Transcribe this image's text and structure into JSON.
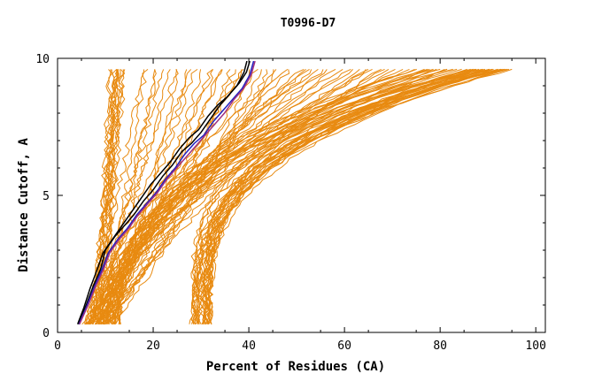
{
  "chart_data": {
    "type": "line",
    "title": "T0996-D7",
    "xlabel": "Percent of Residues (CA)",
    "ylabel": "Distance Cutoff, A",
    "xlim": [
      0,
      102
    ],
    "ylim": [
      0,
      10
    ],
    "x_ticks": [
      {
        "value": 0,
        "label": "0"
      },
      {
        "value": 20,
        "label": "20"
      },
      {
        "value": 40,
        "label": "40"
      },
      {
        "value": 60,
        "label": "60"
      },
      {
        "value": 80,
        "label": "80"
      },
      {
        "value": 100,
        "label": "100"
      }
    ],
    "y_ticks": [
      {
        "value": 0,
        "label": "0"
      },
      {
        "value": 5,
        "label": "5"
      },
      {
        "value": 10,
        "label": "10"
      }
    ],
    "colors": {
      "background_series": "#e88a10",
      "highlight_black": "#000000",
      "highlight_blue": "#2020c0",
      "highlight_purple": "#a03080",
      "axis": "#000000"
    },
    "highlight_series": [
      {
        "name": "model-black-1",
        "color": "#000000",
        "x": [
          4.4,
          6,
          7.5,
          9,
          10,
          12,
          14,
          16,
          18,
          20,
          22,
          24,
          26,
          28,
          30,
          32,
          34,
          36,
          38,
          39.5,
          40.2
        ],
        "y": [
          0.3,
          1.0,
          1.7,
          2.3,
          3.0,
          3.5,
          3.9,
          4.3,
          4.8,
          5.2,
          5.7,
          6.1,
          6.6,
          6.9,
          7.3,
          7.8,
          8.3,
          8.7,
          9.1,
          9.5,
          9.9
        ]
      },
      {
        "name": "model-black-2",
        "color": "#000000",
        "x": [
          4.2,
          5.5,
          6.8,
          8.3,
          9.5,
          11.5,
          13.5,
          15.5,
          17.5,
          19.5,
          21.5,
          23.5,
          25.5,
          27.5,
          29.5,
          31.5,
          33.5,
          35.5,
          37.5,
          39,
          39.6
        ],
        "y": [
          0.3,
          0.9,
          1.6,
          2.3,
          2.9,
          3.4,
          3.9,
          4.4,
          4.9,
          5.4,
          5.8,
          6.2,
          6.7,
          7.1,
          7.4,
          7.9,
          8.3,
          8.6,
          9.0,
          9.5,
          9.9
        ]
      },
      {
        "name": "model-blue",
        "color": "#2020c0",
        "x": [
          4.5,
          6.2,
          7.8,
          9.3,
          10.6,
          12.6,
          14.6,
          16.6,
          18.6,
          20.6,
          22.6,
          24.6,
          26.6,
          28.6,
          30.6,
          32.6,
          34.6,
          36.6,
          38.6,
          40.2,
          41
        ],
        "y": [
          0.3,
          1.0,
          1.7,
          2.3,
          2.9,
          3.4,
          3.8,
          4.3,
          4.7,
          5.1,
          5.6,
          6.0,
          6.5,
          6.9,
          7.2,
          7.7,
          8.1,
          8.5,
          8.9,
          9.4,
          9.9
        ]
      },
      {
        "name": "model-purple",
        "color": "#a03080",
        "x": [
          4.6,
          6.4,
          8.0,
          9.6,
          10.9,
          12.9,
          14.9,
          16.9,
          18.9,
          20.9,
          22.9,
          24.9,
          26.9,
          28.9,
          30.9,
          32.9,
          34.9,
          36.9,
          38.9,
          40.5,
          41.3
        ],
        "y": [
          0.3,
          1.0,
          1.7,
          2.3,
          2.9,
          3.4,
          3.8,
          4.3,
          4.7,
          5.1,
          5.6,
          6.0,
          6.4,
          6.8,
          7.2,
          7.6,
          8.0,
          8.5,
          8.9,
          9.4,
          9.9
        ]
      }
    ],
    "background_groups": [
      {
        "name": "steep-near-center",
        "count": 14,
        "x_start": 5,
        "x_end_min": 11,
        "x_end_max": 14,
        "shape": 0.55
      },
      {
        "name": "mid-diagonal",
        "count": 26,
        "x_start": 6,
        "x_end_min": 18,
        "x_end_max": 46,
        "shape": 0.85
      },
      {
        "name": "broad-mid",
        "count": 22,
        "x_start": 8,
        "x_end_min": 48,
        "x_end_max": 72,
        "shape": 1.6
      },
      {
        "name": "slow-rising",
        "count": 16,
        "x_start": 10,
        "x_end_min": 74,
        "x_end_max": 84,
        "shape": 2.4
      },
      {
        "name": "fast-right-bundle",
        "count": 30,
        "x_start": 28,
        "x_end_min": 86,
        "x_end_max": 95,
        "shape": 3.4
      }
    ]
  }
}
